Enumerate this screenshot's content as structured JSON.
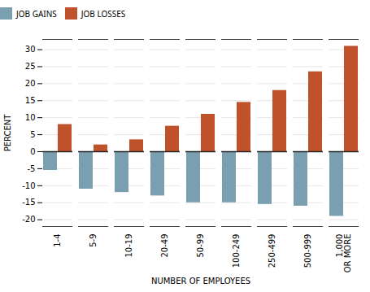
{
  "chart_data": {
    "type": "bar",
    "categories": [
      "1-4",
      "5-9",
      "10-19",
      "20-49",
      "50-99",
      "100-249",
      "250-499",
      "500-999",
      "1,000\nOR MORE"
    ],
    "series": [
      {
        "name": "JOB GAINS",
        "color": "#7a9fb0",
        "values": [
          -5.5,
          -11,
          -12,
          -13,
          -15,
          -15,
          -15.5,
          -16,
          -19
        ]
      },
      {
        "name": "JOB LOSSES",
        "color": "#c0522b",
        "values": [
          8,
          2,
          3.5,
          7.5,
          11,
          14.5,
          18,
          23.5,
          31
        ]
      }
    ],
    "xlabel": "NUMBER OF EMPLOYEES",
    "ylabel": "PERCENT",
    "ylim": [
      -22,
      33
    ],
    "yticks": [
      -20,
      -15,
      -10,
      -5,
      0,
      5,
      10,
      15,
      20,
      25,
      30
    ],
    "grid": true,
    "legend": "upper left"
  }
}
